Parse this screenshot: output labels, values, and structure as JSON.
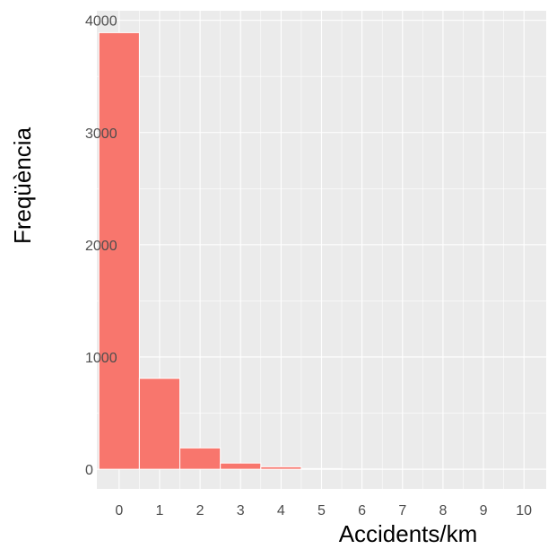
{
  "chart_data": {
    "type": "bar",
    "title": "",
    "xlabel": "Accidents/km",
    "ylabel": "Freqüència",
    "categories": [
      "0",
      "1",
      "2",
      "3",
      "4",
      "5",
      "6",
      "7",
      "8",
      "9",
      "10"
    ],
    "x_ticks": [
      "0",
      "1",
      "2",
      "3",
      "4",
      "5",
      "6",
      "7",
      "8",
      "9",
      "10"
    ],
    "y_ticks": [
      "0",
      "1000",
      "2000",
      "3000",
      "4000"
    ],
    "values": [
      3890,
      810,
      190,
      55,
      22,
      6,
      2,
      1,
      1,
      0,
      0
    ],
    "xlim": [
      -0.55,
      10.55
    ],
    "ylim": [
      -175,
      4085
    ],
    "grid": true,
    "legend": "none",
    "colors": {
      "bar_fill": "#F8766D",
      "bar_outline": "#ffffff",
      "panel_background": "#EBEBEB",
      "grid_major": "#ffffff",
      "tick_text": "#4d4d4d",
      "axis_title_text": "#000000"
    }
  }
}
